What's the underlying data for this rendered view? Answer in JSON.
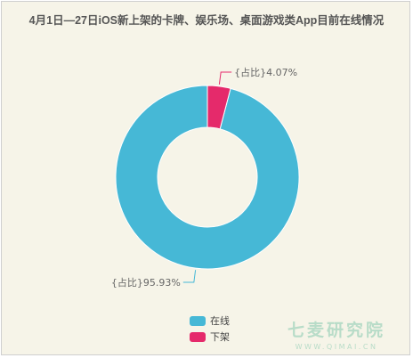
{
  "chart_data": {
    "type": "pie",
    "title": "4月1日—27日iOS新上架的卡牌、娱乐场、桌面游戏类App目前在线情况",
    "series": [
      {
        "name": "在线",
        "value": 95.93,
        "label": "{占比}95.93%",
        "color": "#46b8d6"
      },
      {
        "name": "下架",
        "value": 4.07,
        "label": "{占比}4.07%",
        "color": "#e52a6b"
      }
    ],
    "legend_position": "bottom-center"
  },
  "watermark": {
    "cn": "七麦研究院",
    "en": "WWW.QIMAI.CN"
  }
}
